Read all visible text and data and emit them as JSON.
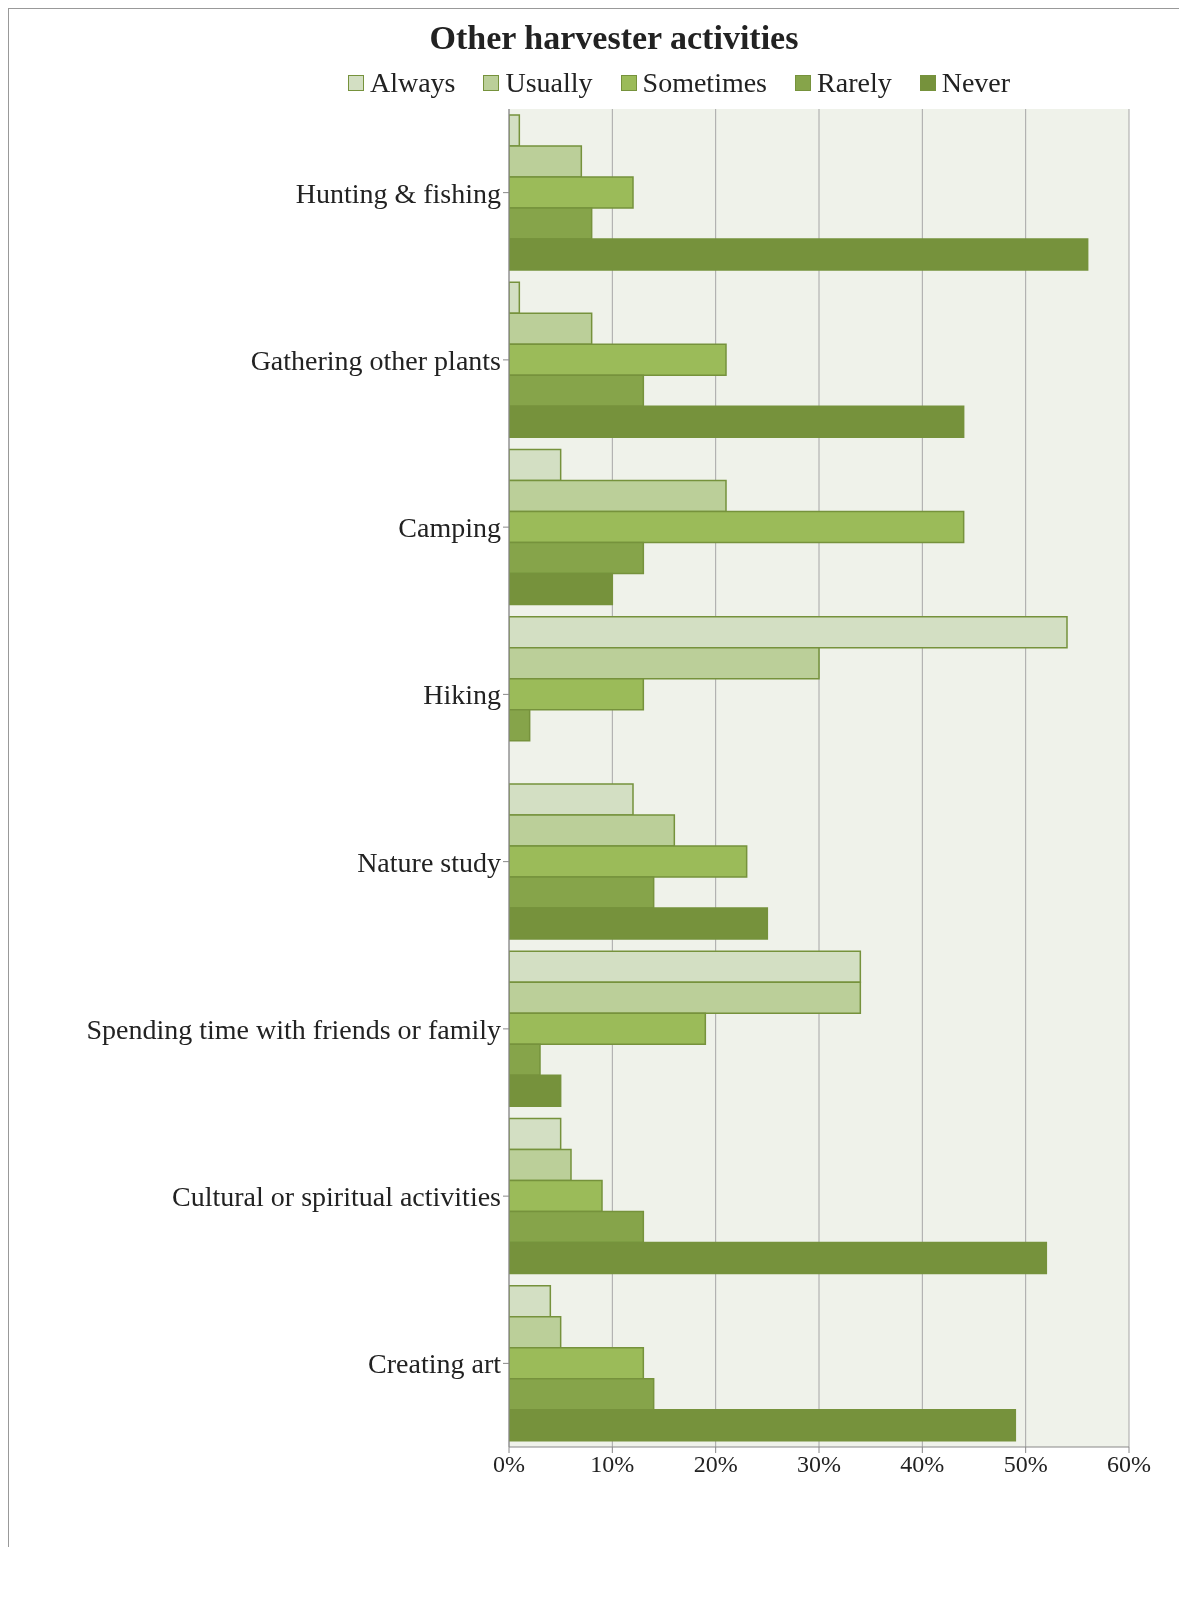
{
  "chart_data": {
    "type": "bar",
    "orientation": "horizontal",
    "title": "Other harvester activities",
    "categories": [
      "Hunting & fishing",
      "Gathering other plants",
      "Camping",
      "Hiking",
      "Nature study",
      "Spending time with friends or family",
      "Cultural or spiritual activities",
      "Creating art"
    ],
    "series": [
      {
        "name": "Always",
        "color": "#d3dfc3",
        "values": [
          1,
          1,
          5,
          54,
          12,
          34,
          5,
          4
        ]
      },
      {
        "name": "Usually",
        "color": "#bbcf99",
        "values": [
          7,
          8,
          21,
          30,
          16,
          34,
          6,
          5
        ]
      },
      {
        "name": "Sometimes",
        "color": "#9bbb59",
        "values": [
          12,
          21,
          44,
          13,
          23,
          19,
          9,
          13
        ]
      },
      {
        "name": "Rarely",
        "color": "#86a44a",
        "values": [
          8,
          13,
          13,
          2,
          14,
          3,
          13,
          14
        ]
      },
      {
        "name": "Never",
        "color": "#76923c",
        "values": [
          56,
          44,
          10,
          0,
          25,
          5,
          52,
          49
        ]
      }
    ],
    "xlim": [
      0,
      60
    ],
    "xticks": [
      {
        "value": 0,
        "label": "0%"
      },
      {
        "value": 10,
        "label": "10%"
      },
      {
        "value": 20,
        "label": "20%"
      },
      {
        "value": 30,
        "label": "30%"
      },
      {
        "value": 40,
        "label": "40%"
      },
      {
        "value": 50,
        "label": "50%"
      },
      {
        "value": 60,
        "label": "60%"
      }
    ],
    "grid": "x",
    "legend": "top"
  }
}
